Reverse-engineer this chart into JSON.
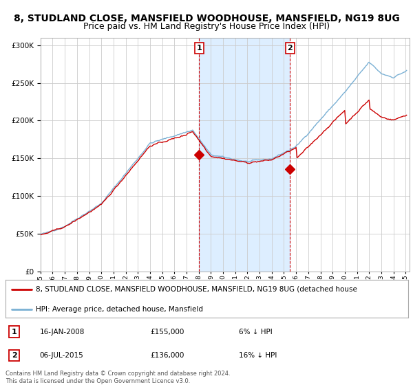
{
  "title": "8, STUDLAND CLOSE, MANSFIELD WOODHOUSE, MANSFIELD, NG19 8UG",
  "subtitle": "Price paid vs. HM Land Registry's House Price Index (HPI)",
  "title_fontsize": 10,
  "subtitle_fontsize": 9,
  "background_color": "#ffffff",
  "plot_bg_color": "#ffffff",
  "grid_color": "#cccccc",
  "legend_line1": "8, STUDLAND CLOSE, MANSFIELD WOODHOUSE, MANSFIELD, NG19 8UG (detached house",
  "legend_line2": "HPI: Average price, detached house, Mansfield",
  "footer": "Contains HM Land Registry data © Crown copyright and database right 2024.\nThis data is licensed under the Open Government Licence v3.0.",
  "red_color": "#cc0000",
  "blue_color": "#7ab0d4",
  "shade_color": "#ddeeff",
  "ylim": [
    0,
    310000
  ],
  "yticks": [
    0,
    50000,
    100000,
    150000,
    200000,
    250000,
    300000
  ],
  "t1_year": 2008.04,
  "t2_year": 2015.51,
  "t1_price": 155000,
  "t2_price": 136000,
  "t1_date": "16-JAN-2008",
  "t2_date": "06-JUL-2015",
  "t1_pct": "6%",
  "t2_pct": "16%"
}
